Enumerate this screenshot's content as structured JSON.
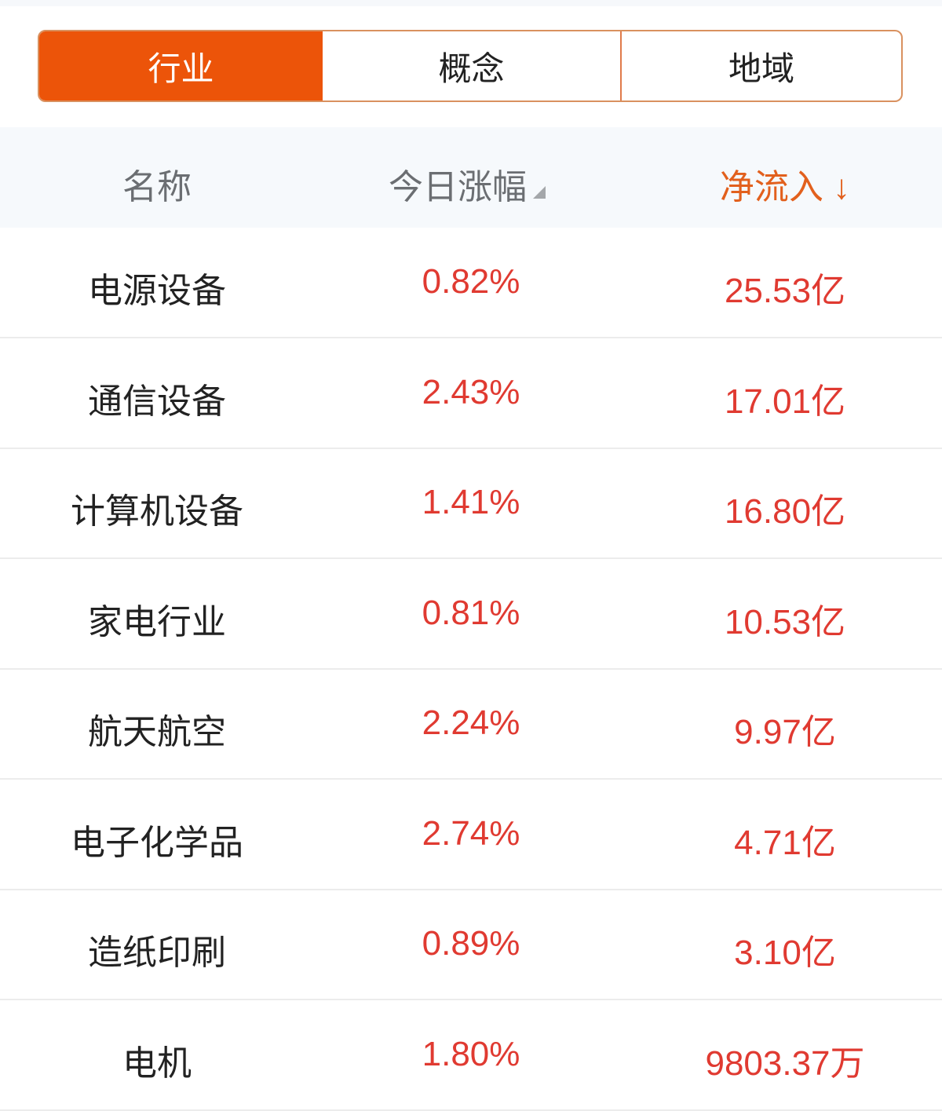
{
  "tabs": [
    {
      "label": "行业",
      "active": true
    },
    {
      "label": "概念",
      "active": false
    },
    {
      "label": "地域",
      "active": false
    }
  ],
  "header": {
    "name": "名称",
    "change": "今日涨幅",
    "flow": "净流入 ↓",
    "sort_column": "净流入",
    "sort_direction": "descending"
  },
  "colors": {
    "accent": "#ec5409",
    "up": "#e03a31"
  },
  "rows": [
    {
      "name": "电源设备",
      "change": "0.82%",
      "flow": "25.53亿"
    },
    {
      "name": "通信设备",
      "change": "2.43%",
      "flow": "17.01亿"
    },
    {
      "name": "计算机设备",
      "change": "1.41%",
      "flow": "16.80亿"
    },
    {
      "name": "家电行业",
      "change": "0.81%",
      "flow": "10.53亿"
    },
    {
      "name": "航天航空",
      "change": "2.24%",
      "flow": "9.97亿"
    },
    {
      "name": "电子化学品",
      "change": "2.74%",
      "flow": "4.71亿"
    },
    {
      "name": "造纸印刷",
      "change": "0.89%",
      "flow": "3.10亿"
    },
    {
      "name": "电机",
      "change": "1.80%",
      "flow": "9803.37万"
    }
  ]
}
